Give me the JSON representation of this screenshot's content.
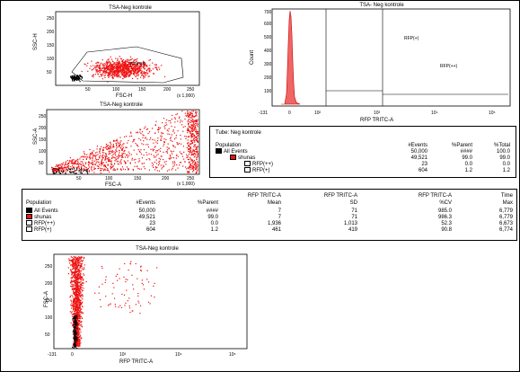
{
  "plots": {
    "p1": {
      "title": "TSA-Neg kontrole",
      "ylabel": "SSC-H",
      "xlabel": "FSC-H",
      "yticks": [
        "50",
        "100",
        "150",
        "200",
        "250",
        "(x 1,000)"
      ],
      "xticks": [
        "50",
        "100",
        "150",
        "200",
        "250",
        "(x 1,000)"
      ],
      "gate_label": "shunas"
    },
    "p2": {
      "title": "TSA- Neg kontrole",
      "ylabel": "Count",
      "xlabel": "RFP TRITC-A",
      "yticks": [
        "100",
        "200",
        "300",
        "400",
        "500",
        "600",
        "700"
      ],
      "xticks": [
        "-131",
        "0",
        "10²",
        "10³",
        "10⁴",
        "10⁵"
      ],
      "gate1": "RFP(+)",
      "gate2": "RFP(++)"
    },
    "p3": {
      "title": "TSA-Neg kontrole",
      "ylabel": "SSC-A",
      "xlabel": "FSC-A",
      "yticks": [
        "50",
        "100",
        "150",
        "200",
        "250",
        "(x 1,000)"
      ],
      "xticks": [
        "50",
        "100",
        "150",
        "200",
        "250",
        "(x 1,000)"
      ]
    },
    "p4": {
      "title": "TSA-Neg kontrole",
      "ylabel": "FSC-A",
      "xlabel": "RFP TRITC-A",
      "yticks": [
        "50",
        "100",
        "150",
        "200",
        "250",
        "(x 1,000)"
      ],
      "xticks": [
        "-131",
        "0",
        "10³",
        "10⁴",
        "10⁵"
      ]
    }
  },
  "tube_table": {
    "tube_label": "Tube:  Neg kontrole",
    "headers": [
      "Population",
      "#Events",
      "%Parent",
      "%Total"
    ],
    "rows": [
      {
        "name": "All Events",
        "events": "50,000",
        "parent": "####",
        "total": "100.0"
      },
      {
        "name": "shunas",
        "events": "49,521",
        "parent": "99.0",
        "total": "99.0"
      },
      {
        "name": "RFP(++)",
        "events": "23",
        "parent": "0.0",
        "total": "0.0"
      },
      {
        "name": "RFP(+)",
        "events": "604",
        "parent": "1.2",
        "total": "1.2"
      }
    ]
  },
  "stats_table": {
    "header_top": [
      "RFP TRITC-A",
      "RFP TRITC-A",
      "RFP TRITC-A",
      "Time"
    ],
    "header_bottom": [
      "Population",
      "#Events",
      "%Parent",
      "Mean",
      "SD",
      "%CV",
      "Max"
    ],
    "rows": [
      {
        "name": "All Events",
        "events": "50,000",
        "parent": "####",
        "mean": "7",
        "sd": "71",
        "cv": "985.0",
        "max": "6,779"
      },
      {
        "name": "shunas",
        "events": "49,521",
        "parent": "99.0",
        "mean": "7",
        "sd": "71",
        "cv": "986.3",
        "max": "6,779"
      },
      {
        "name": "RFP(++)",
        "events": "23",
        "parent": "0.0",
        "mean": "1,936",
        "sd": "1,013",
        "cv": "52.3",
        "max": "6,673"
      },
      {
        "name": "RFP(+)",
        "events": "604",
        "parent": "1.2",
        "mean": "461",
        "sd": "419",
        "cv": "90.8",
        "max": "6,774"
      }
    ]
  },
  "colors": {
    "accent": "#ee1111",
    "black": "#000000"
  }
}
